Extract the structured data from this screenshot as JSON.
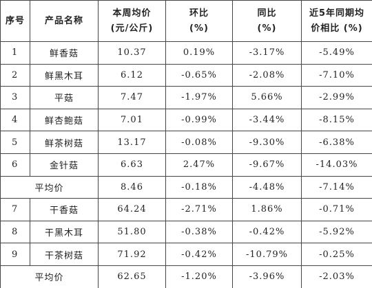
{
  "table": {
    "headers": [
      [
        "序号"
      ],
      [
        "产品名称"
      ],
      [
        "本周均价",
        "(元/公斤)"
      ],
      [
        "环比",
        "(%)"
      ],
      [
        "同比",
        "(%)"
      ],
      [
        "近5年同期均",
        "价相比 (%)"
      ]
    ],
    "rows": [
      [
        "1",
        "鲜香菇",
        "10.37",
        "0.19%",
        "-3.17%",
        "-5.49%"
      ],
      [
        "2",
        "鲜黑木耳",
        "6.12",
        "-0.65%",
        "-2.08%",
        "-7.10%"
      ],
      [
        "3",
        "平菇",
        "7.47",
        "-1.97%",
        "5.66%",
        "-2.99%"
      ],
      [
        "4",
        "鲜杏鲍菇",
        "7.01",
        "-0.99%",
        "-3.44%",
        "-8.15%"
      ],
      [
        "5",
        "鲜茶树菇",
        "13.17",
        "-0.08%",
        "-9.30%",
        "-6.38%"
      ],
      [
        "6",
        "金针菇",
        "6.63",
        "2.47%",
        "-9.67%",
        "-14.03%"
      ],
      [
        "平均价",
        "8.46",
        "-0.18%",
        "-4.48%",
        "-7.14%"
      ],
      [
        "7",
        "干香菇",
        "64.24",
        "-2.71%",
        "1.86%",
        "-0.71%"
      ],
      [
        "8",
        "干黑木耳",
        "51.80",
        "-0.38%",
        "-0.42%",
        "-5.92%"
      ],
      [
        "9",
        "干茶树菇",
        "71.92",
        "-0.42%",
        "-10.79%",
        "-0.25%"
      ],
      [
        "平均价",
        "62.65",
        "-1.20%",
        "-3.96%",
        "-2.03%"
      ]
    ]
  }
}
